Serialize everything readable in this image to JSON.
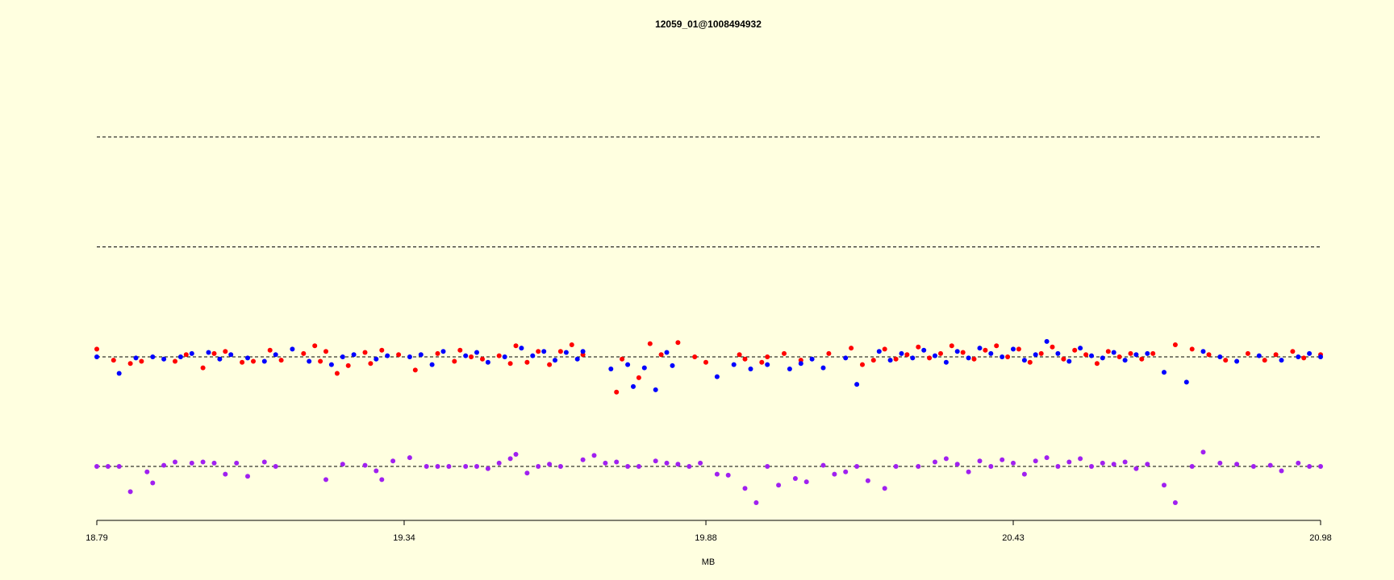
{
  "chart_data": {
    "type": "scatter",
    "title": "12059_01@1008494932",
    "xlabel": "MB",
    "ylabel": "",
    "xlim": [
      18.79,
      20.98
    ],
    "x_ticks": [
      "18.79",
      "19.34",
      "19.88",
      "20.43",
      "20.98"
    ],
    "grid": false,
    "colors": {
      "background": "#ffffe0",
      "series_a": "#ff0000",
      "series_b": "#0000ff",
      "combined": "#a020f0",
      "reference_lines": "#000000"
    },
    "upper_panel": {
      "reference_levels": [
        3,
        2,
        1
      ],
      "ylim": [
        0,
        4
      ],
      "series": [
        {
          "color": "red",
          "points": [
            [
              18.79,
              1.07
            ],
            [
              18.82,
              0.97
            ],
            [
              18.85,
              0.94
            ],
            [
              18.87,
              0.96
            ],
            [
              18.93,
              0.96
            ],
            [
              18.95,
              1.02
            ],
            [
              18.98,
              0.9
            ],
            [
              19.0,
              1.03
            ],
            [
              19.02,
              1.05
            ],
            [
              19.05,
              0.95
            ],
            [
              19.07,
              0.96
            ],
            [
              19.1,
              1.06
            ],
            [
              19.12,
              0.97
            ],
            [
              19.16,
              1.03
            ],
            [
              19.18,
              1.1
            ],
            [
              19.19,
              0.96
            ],
            [
              19.2,
              1.05
            ],
            [
              19.22,
              0.85
            ],
            [
              19.24,
              0.92
            ],
            [
              19.27,
              1.04
            ],
            [
              19.28,
              0.94
            ],
            [
              19.3,
              1.06
            ],
            [
              19.33,
              1.02
            ],
            [
              19.36,
              0.88
            ],
            [
              19.4,
              1.03
            ],
            [
              19.43,
              0.96
            ],
            [
              19.44,
              1.06
            ],
            [
              19.46,
              1.0
            ],
            [
              19.48,
              0.98
            ],
            [
              19.51,
              1.01
            ],
            [
              19.53,
              0.94
            ],
            [
              19.54,
              1.1
            ],
            [
              19.56,
              0.95
            ],
            [
              19.58,
              1.05
            ],
            [
              19.6,
              0.93
            ],
            [
              19.62,
              1.05
            ],
            [
              19.64,
              1.11
            ],
            [
              19.66,
              1.02
            ],
            [
              19.72,
              0.68
            ],
            [
              19.73,
              0.98
            ],
            [
              19.76,
              0.81
            ],
            [
              19.78,
              1.12
            ],
            [
              19.8,
              1.02
            ],
            [
              19.83,
              1.13
            ],
            [
              19.86,
              1.0
            ],
            [
              19.88,
              0.95
            ],
            [
              19.94,
              1.02
            ],
            [
              19.95,
              0.98
            ],
            [
              19.98,
              0.95
            ],
            [
              19.99,
              1.0
            ],
            [
              20.02,
              1.03
            ],
            [
              20.05,
              0.97
            ],
            [
              20.1,
              1.03
            ],
            [
              20.14,
              1.08
            ],
            [
              20.16,
              0.93
            ],
            [
              20.18,
              0.97
            ],
            [
              20.2,
              1.07
            ],
            [
              20.22,
              0.98
            ],
            [
              20.24,
              1.02
            ],
            [
              20.26,
              1.09
            ],
            [
              20.28,
              0.99
            ],
            [
              20.3,
              1.03
            ],
            [
              20.32,
              1.1
            ],
            [
              20.34,
              1.04
            ],
            [
              20.36,
              0.98
            ],
            [
              20.38,
              1.06
            ],
            [
              20.4,
              1.1
            ],
            [
              20.42,
              1.0
            ],
            [
              20.44,
              1.07
            ],
            [
              20.46,
              0.95
            ],
            [
              20.48,
              1.03
            ],
            [
              20.5,
              1.09
            ],
            [
              20.52,
              0.98
            ],
            [
              20.54,
              1.06
            ],
            [
              20.56,
              1.02
            ],
            [
              20.58,
              0.94
            ],
            [
              20.6,
              1.05
            ],
            [
              20.62,
              1.0
            ],
            [
              20.64,
              1.03
            ],
            [
              20.66,
              0.98
            ],
            [
              20.68,
              1.03
            ],
            [
              20.72,
              1.11
            ],
            [
              20.75,
              1.07
            ],
            [
              20.78,
              1.02
            ],
            [
              20.81,
              0.97
            ],
            [
              20.85,
              1.03
            ],
            [
              20.88,
              0.97
            ],
            [
              20.9,
              1.02
            ],
            [
              20.93,
              1.05
            ],
            [
              20.95,
              0.99
            ],
            [
              20.98,
              1.02
            ]
          ]
        },
        {
          "color": "blue",
          "points": [
            [
              18.79,
              1.0
            ],
            [
              18.83,
              0.85
            ],
            [
              18.86,
              0.99
            ],
            [
              18.89,
              1.0
            ],
            [
              18.91,
              0.98
            ],
            [
              18.94,
              1.0
            ],
            [
              18.96,
              1.03
            ],
            [
              18.99,
              1.04
            ],
            [
              19.01,
              0.98
            ],
            [
              19.03,
              1.02
            ],
            [
              19.06,
              0.99
            ],
            [
              19.09,
              0.96
            ],
            [
              19.11,
              1.02
            ],
            [
              19.14,
              1.07
            ],
            [
              19.17,
              0.96
            ],
            [
              19.21,
              0.93
            ],
            [
              19.23,
              1.0
            ],
            [
              19.25,
              1.02
            ],
            [
              19.29,
              0.98
            ],
            [
              19.31,
              1.01
            ],
            [
              19.35,
              1.0
            ],
            [
              19.37,
              1.02
            ],
            [
              19.39,
              0.93
            ],
            [
              19.41,
              1.05
            ],
            [
              19.45,
              1.01
            ],
            [
              19.47,
              1.04
            ],
            [
              19.49,
              0.95
            ],
            [
              19.52,
              1.0
            ],
            [
              19.55,
              1.08
            ],
            [
              19.57,
              1.01
            ],
            [
              19.59,
              1.05
            ],
            [
              19.61,
              0.97
            ],
            [
              19.63,
              1.04
            ],
            [
              19.65,
              0.98
            ],
            [
              19.66,
              1.05
            ],
            [
              19.71,
              0.89
            ],
            [
              19.74,
              0.93
            ],
            [
              19.75,
              0.73
            ],
            [
              19.77,
              0.9
            ],
            [
              19.79,
              0.7
            ],
            [
              19.81,
              1.04
            ],
            [
              19.82,
              0.92
            ],
            [
              19.9,
              0.82
            ],
            [
              19.93,
              0.93
            ],
            [
              19.96,
              0.89
            ],
            [
              19.99,
              0.93
            ],
            [
              20.03,
              0.89
            ],
            [
              20.05,
              0.94
            ],
            [
              20.07,
              0.98
            ],
            [
              20.09,
              0.9
            ],
            [
              20.13,
              0.99
            ],
            [
              20.15,
              0.75
            ],
            [
              20.19,
              1.05
            ],
            [
              20.21,
              0.97
            ],
            [
              20.23,
              1.03
            ],
            [
              20.25,
              0.99
            ],
            [
              20.27,
              1.06
            ],
            [
              20.29,
              1.01
            ],
            [
              20.31,
              0.95
            ],
            [
              20.33,
              1.05
            ],
            [
              20.35,
              0.99
            ],
            [
              20.37,
              1.08
            ],
            [
              20.39,
              1.03
            ],
            [
              20.41,
              1.0
            ],
            [
              20.43,
              1.07
            ],
            [
              20.45,
              0.97
            ],
            [
              20.47,
              1.02
            ],
            [
              20.49,
              1.14
            ],
            [
              20.51,
              1.03
            ],
            [
              20.53,
              0.96
            ],
            [
              20.55,
              1.08
            ],
            [
              20.57,
              1.01
            ],
            [
              20.59,
              0.99
            ],
            [
              20.61,
              1.04
            ],
            [
              20.63,
              0.97
            ],
            [
              20.65,
              1.02
            ],
            [
              20.67,
              1.03
            ],
            [
              20.7,
              0.86
            ],
            [
              20.74,
              0.77
            ],
            [
              20.77,
              1.05
            ],
            [
              20.8,
              1.0
            ],
            [
              20.83,
              0.96
            ],
            [
              20.87,
              1.01
            ],
            [
              20.91,
              0.97
            ],
            [
              20.94,
              1.0
            ],
            [
              20.96,
              1.03
            ],
            [
              20.98,
              1.0
            ]
          ]
        }
      ]
    },
    "lower_panel": {
      "reference_levels": [
        1
      ],
      "series": [
        {
          "color": "purple",
          "points": [
            [
              18.79,
              1.0
            ],
            [
              18.81,
              1.0
            ],
            [
              18.83,
              1.0
            ],
            [
              18.85,
              0.77
            ],
            [
              18.88,
              0.95
            ],
            [
              18.89,
              0.85
            ],
            [
              18.91,
              1.01
            ],
            [
              18.93,
              1.04
            ],
            [
              18.96,
              1.03
            ],
            [
              18.98,
              1.04
            ],
            [
              19.0,
              1.03
            ],
            [
              19.02,
              0.93
            ],
            [
              19.04,
              1.03
            ],
            [
              19.06,
              0.91
            ],
            [
              19.09,
              1.04
            ],
            [
              19.11,
              1.0
            ],
            [
              19.2,
              0.88
            ],
            [
              19.23,
              1.02
            ],
            [
              19.27,
              1.01
            ],
            [
              19.29,
              0.96
            ],
            [
              19.3,
              0.88
            ],
            [
              19.32,
              1.05
            ],
            [
              19.35,
              1.08
            ],
            [
              19.38,
              1.0
            ],
            [
              19.4,
              1.0
            ],
            [
              19.42,
              1.0
            ],
            [
              19.45,
              1.0
            ],
            [
              19.47,
              1.0
            ],
            [
              19.49,
              0.98
            ],
            [
              19.51,
              1.03
            ],
            [
              19.53,
              1.07
            ],
            [
              19.54,
              1.11
            ],
            [
              19.56,
              0.94
            ],
            [
              19.58,
              1.0
            ],
            [
              19.6,
              1.02
            ],
            [
              19.62,
              1.0
            ],
            [
              19.66,
              1.06
            ],
            [
              19.68,
              1.1
            ],
            [
              19.7,
              1.03
            ],
            [
              19.72,
              1.04
            ],
            [
              19.74,
              1.0
            ],
            [
              19.76,
              1.0
            ],
            [
              19.79,
              1.05
            ],
            [
              19.81,
              1.03
            ],
            [
              19.83,
              1.02
            ],
            [
              19.85,
              1.0
            ],
            [
              19.87,
              1.03
            ],
            [
              19.9,
              0.93
            ],
            [
              19.92,
              0.92
            ],
            [
              19.95,
              0.8
            ],
            [
              19.97,
              0.67
            ],
            [
              19.99,
              1.0
            ],
            [
              20.01,
              0.83
            ],
            [
              20.04,
              0.89
            ],
            [
              20.06,
              0.86
            ],
            [
              20.09,
              1.01
            ],
            [
              20.11,
              0.93
            ],
            [
              20.13,
              0.95
            ],
            [
              20.15,
              1.0
            ],
            [
              20.17,
              0.87
            ],
            [
              20.2,
              0.8
            ],
            [
              20.22,
              1.0
            ],
            [
              20.26,
              1.0
            ],
            [
              20.29,
              1.04
            ],
            [
              20.31,
              1.07
            ],
            [
              20.33,
              1.02
            ],
            [
              20.35,
              0.95
            ],
            [
              20.37,
              1.05
            ],
            [
              20.39,
              1.0
            ],
            [
              20.41,
              1.06
            ],
            [
              20.43,
              1.03
            ],
            [
              20.45,
              0.93
            ],
            [
              20.47,
              1.05
            ],
            [
              20.49,
              1.08
            ],
            [
              20.51,
              1.0
            ],
            [
              20.53,
              1.04
            ],
            [
              20.55,
              1.07
            ],
            [
              20.57,
              1.0
            ],
            [
              20.59,
              1.03
            ],
            [
              20.61,
              1.02
            ],
            [
              20.63,
              1.04
            ],
            [
              20.65,
              0.98
            ],
            [
              20.67,
              1.02
            ],
            [
              20.7,
              0.83
            ],
            [
              20.72,
              0.67
            ],
            [
              20.75,
              1.0
            ],
            [
              20.77,
              1.13
            ],
            [
              20.8,
              1.03
            ],
            [
              20.83,
              1.02
            ],
            [
              20.86,
              1.0
            ],
            [
              20.89,
              1.01
            ],
            [
              20.91,
              0.96
            ],
            [
              20.94,
              1.03
            ],
            [
              20.96,
              1.0
            ],
            [
              20.98,
              1.0
            ]
          ]
        }
      ]
    }
  }
}
